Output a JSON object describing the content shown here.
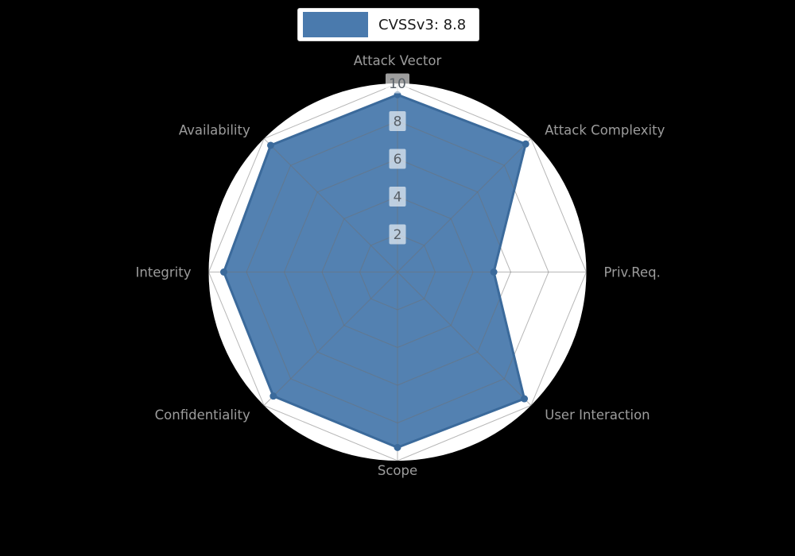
{
  "legend": {
    "label": "CVSSv3: 8.8"
  },
  "chart_data": {
    "type": "radar",
    "title": "",
    "legend_entries": [
      "CVSSv3: 8.8"
    ],
    "legend_position": "top-center",
    "categories": [
      "Attack Vector",
      "Attack Complexity",
      "Priv.Req.",
      "User Interaction",
      "Scope",
      "Confidentiality",
      "Integrity",
      "Availability"
    ],
    "series": [
      {
        "name": "CVSSv3: 8.8",
        "values": [
          9.4,
          9.6,
          5.1,
          9.5,
          9.3,
          9.3,
          9.2,
          9.5
        ]
      }
    ],
    "rlim": [
      0,
      10
    ],
    "radial_ticks": [
      2,
      4,
      6,
      8,
      10
    ],
    "grid": true,
    "colors": {
      "fill": "#4a7aad",
      "edge": "#3b6a9b",
      "marker": "#3b6a9b",
      "grid": "#6f6f6f",
      "plot_bg": "#ffffff",
      "page_bg": "#000000",
      "axis_label": "#9c9c9c",
      "tick_label": "#565e66",
      "tick_bg": "#ffffff",
      "legend_text": "#1a1a1a",
      "legend_bg": "#ffffff",
      "legend_border": "#d4d4d4"
    }
  }
}
